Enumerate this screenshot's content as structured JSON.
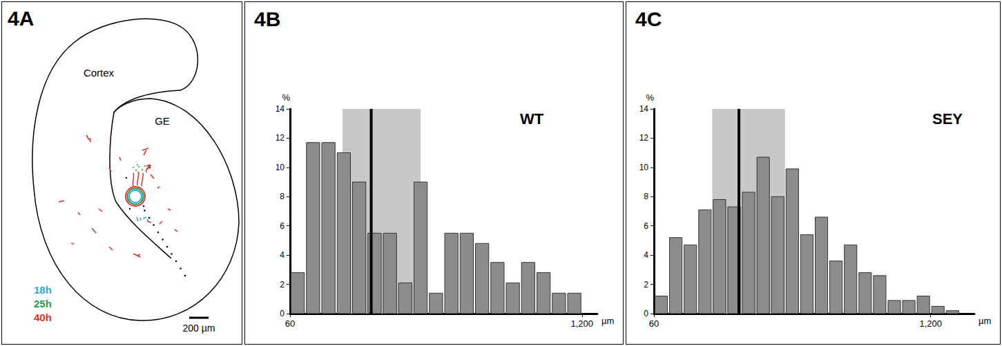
{
  "diagram": {
    "title": "4A",
    "labels": [
      "Cortex",
      "GE"
    ],
    "time_points": [
      {
        "label": "18h",
        "color": "#2aa7df"
      },
      {
        "label": "25h",
        "color": "#1e9e4a"
      },
      {
        "label": "40h",
        "color": "#e4312b"
      }
    ],
    "scale_bar": "200 µm"
  },
  "chart_data": [
    {
      "type": "histogram",
      "title": "4B",
      "annotation": "WT",
      "ylabel": "%",
      "xlabel": "µm",
      "bins": [
        60,
        120,
        180,
        240,
        300,
        360,
        420,
        480,
        540,
        600,
        660,
        720,
        780,
        840,
        900,
        960,
        1020,
        1080,
        1140,
        1200
      ],
      "values": [
        2.8,
        11.7,
        11.7,
        11.0,
        9.0,
        5.5,
        5.5,
        2.1,
        9.0,
        1.4,
        5.5,
        5.5,
        4.8,
        3.5,
        2.1,
        3.5,
        2.8,
        1.4,
        1.4
      ],
      "color": "#8c8c8c",
      "xlim": [
        60,
        1260
      ],
      "xticks": [
        60,
        1200
      ],
      "ylim": [
        0,
        14
      ],
      "yticks": [
        0,
        2,
        4,
        6,
        8,
        10,
        12,
        14
      ],
      "shaded_range": [
        265,
        570
      ],
      "mean": 377,
      "grid": false
    },
    {
      "type": "histogram",
      "title": "4C",
      "annotation": "SEY",
      "ylabel": "%",
      "xlabel": "µm",
      "bins": [
        60,
        120,
        180,
        240,
        300,
        360,
        420,
        480,
        540,
        600,
        660,
        720,
        780,
        840,
        900,
        960,
        1020,
        1080,
        1140,
        1200,
        1260,
        1320
      ],
      "values": [
        1.2,
        5.2,
        4.7,
        7.1,
        7.8,
        7.3,
        8.3,
        10.7,
        8.0,
        9.9,
        5.4,
        6.6,
        3.6,
        4.7,
        2.8,
        2.6,
        0.9,
        0.9,
        1.2,
        0.5,
        0.2
      ],
      "color": "#8c8c8c",
      "xlim": [
        60,
        1380
      ],
      "xticks": [
        60,
        1200
      ],
      "ylim": [
        0,
        14
      ],
      "yticks": [
        0,
        2,
        4,
        6,
        8,
        10,
        12,
        14
      ],
      "shaded_range": [
        300,
        600
      ],
      "mean": 410,
      "grid": false
    }
  ]
}
